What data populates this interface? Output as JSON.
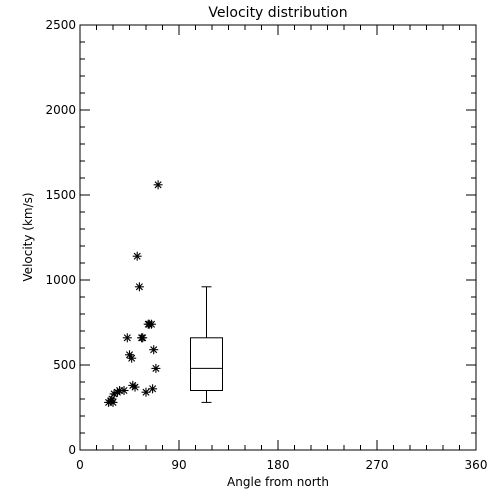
{
  "chart_data": {
    "type": "scatter",
    "title": "Velocity distribution",
    "xlabel": "Angle from north",
    "ylabel": "Velocity (km/s)",
    "xlim": [
      0,
      360
    ],
    "ylim": [
      0,
      2500
    ],
    "xticks": [
      0,
      90,
      180,
      270,
      360
    ],
    "yticks": [
      0,
      500,
      1000,
      1500,
      2000,
      2500
    ],
    "grid": false,
    "marker": "asterisk",
    "color": "#000000",
    "series": [
      {
        "x": [
          26,
          28,
          29,
          30,
          31,
          34,
          36,
          40,
          43,
          45,
          47,
          48,
          50,
          52,
          54,
          56,
          57,
          60,
          62,
          63,
          65,
          66,
          67,
          69,
          71
        ],
        "y": [
          280,
          290,
          300,
          280,
          330,
          340,
          350,
          350,
          660,
          560,
          540,
          380,
          370,
          1140,
          960,
          660,
          660,
          340,
          740,
          740,
          740,
          360,
          590,
          480,
          1560
        ]
      }
    ],
    "boxplot": {
      "x": 115,
      "whisker_low": 280,
      "q1": 350,
      "median": 480,
      "q3": 660,
      "whisker_high": 960
    }
  }
}
